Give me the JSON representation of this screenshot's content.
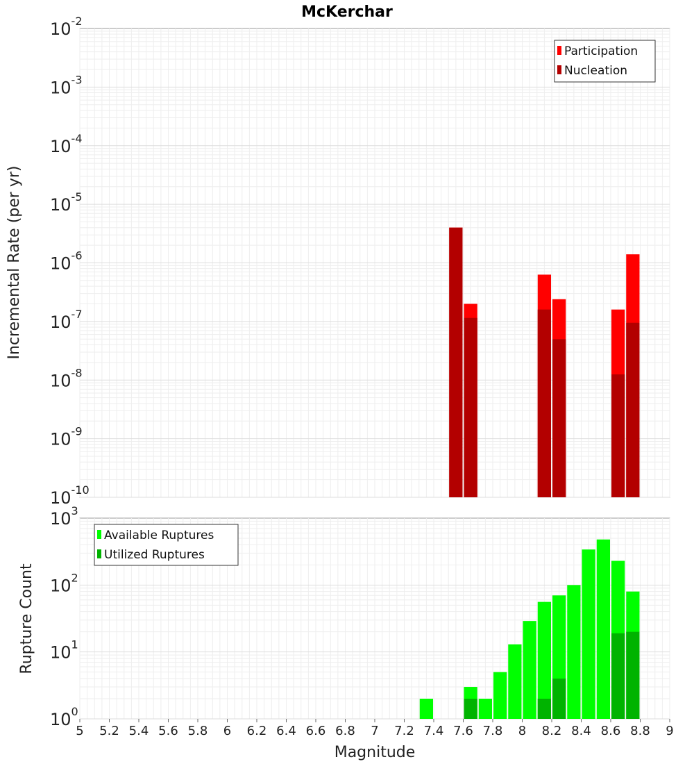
{
  "title": "McKerchar",
  "chart_data": [
    {
      "type": "bar",
      "scale": "log",
      "ylabel": "Incremental Rate (per yr)",
      "ylim_exp": [
        -10,
        -2
      ],
      "xlim": [
        5,
        9
      ],
      "grid": true,
      "legend_position": "top-right",
      "legend": [
        "Participation",
        "Nucleation"
      ],
      "colors": {
        "Participation": "#ff0000",
        "Nucleation": "#b30000"
      },
      "x": [
        7.55,
        7.65,
        8.15,
        8.25,
        8.65,
        8.75
      ],
      "series": [
        {
          "name": "Participation",
          "values": [
            4e-06,
            2e-07,
            6.3e-07,
            2.4e-07,
            1.6e-07,
            1.4e-06
          ]
        },
        {
          "name": "Nucleation",
          "values": [
            4e-06,
            1.15e-07,
            1.6e-07,
            5e-08,
            1.25e-08,
            9.5e-08
          ]
        }
      ]
    },
    {
      "type": "bar",
      "scale": "log",
      "ylabel": "Rupture Count",
      "xlabel": "Magnitude",
      "ylim_exp": [
        0,
        3
      ],
      "xlim": [
        5,
        9
      ],
      "grid": true,
      "legend_position": "top-left",
      "legend": [
        "Available Ruptures",
        "Utilized Ruptures"
      ],
      "colors": {
        "Available Ruptures": "#00ff00",
        "Utilized Ruptures": "#00b300"
      },
      "x": [
        7.35,
        7.55,
        7.65,
        7.75,
        7.85,
        7.95,
        8.05,
        8.15,
        8.25,
        8.35,
        8.45,
        8.55,
        8.65,
        8.75
      ],
      "series": [
        {
          "name": "Available Ruptures",
          "values": [
            2,
            1,
            3,
            2,
            5,
            13,
            29,
            56,
            70,
            100,
            340,
            480,
            230,
            80
          ]
        },
        {
          "name": "Utilized Ruptures",
          "values": [
            0,
            1,
            2,
            0,
            0,
            0,
            0,
            2,
            4,
            0,
            0,
            0,
            19,
            20
          ]
        }
      ],
      "xticks": [
        "5",
        "5.2",
        "5.4",
        "5.6",
        "5.8",
        "6",
        "6.2",
        "6.4",
        "6.6",
        "6.8",
        "7",
        "7.2",
        "7.4",
        "7.6",
        "7.8",
        "8",
        "8.2",
        "8.4",
        "8.6",
        "8.8",
        "9"
      ]
    }
  ]
}
